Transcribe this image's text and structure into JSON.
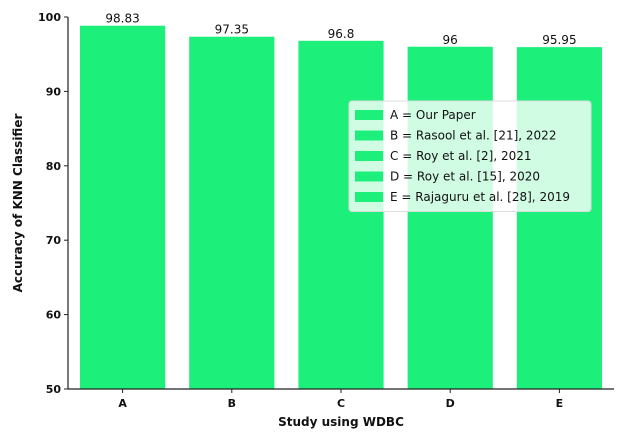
{
  "chart_data": {
    "type": "bar",
    "categories": [
      "A",
      "B",
      "C",
      "D",
      "E"
    ],
    "values": [
      98.83,
      97.35,
      96.8,
      96,
      95.95
    ],
    "data_labels": [
      "98.83",
      "97.35",
      "96.8",
      "96",
      "95.95"
    ],
    "xlabel": "Study using WDBC",
    "ylabel": "Accuracy of KNN Classifier",
    "ylim": [
      50,
      100
    ],
    "yticks": [
      50,
      60,
      70,
      80,
      90,
      100
    ],
    "ytick_labels": [
      "50",
      "60",
      "70",
      "80",
      "90",
      "100"
    ],
    "bar_color": "#1cf07a",
    "grid": false,
    "legend": {
      "placement": "center-right",
      "entries": [
        "A = Our Paper",
        "B = Rasool et al. [21], 2022",
        "C = Roy et al. [2], 2021",
        "D = Roy et al. [15], 2020",
        "E = Rajaguru et al. [28], 2019"
      ]
    }
  }
}
